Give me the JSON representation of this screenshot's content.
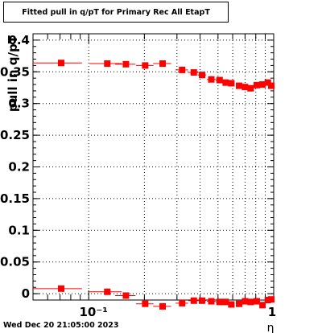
{
  "chart_data": {
    "type": "scatter",
    "title": "Fitted pull in q/pT for Primary Rec All EtapT",
    "xlabel": "η",
    "ylabel": "pull in q/pT",
    "x_scale": "log",
    "xlim": [
      0.05,
      1.0
    ],
    "ylim": [
      -0.01,
      0.41
    ],
    "grid": true,
    "x_tick_labels": [
      "10⁻¹",
      "1"
    ],
    "y_tick_labels": [
      "0",
      "0.05",
      "0.1",
      "0.15",
      "0.2",
      "0.25",
      "0.3",
      "0.35",
      "0.4"
    ],
    "marker_color": "#ff0000",
    "series": [
      {
        "x": [
          0.071,
          0.126,
          0.159,
          0.202,
          0.251,
          0.32,
          0.37,
          0.41,
          0.46,
          0.51,
          0.55,
          0.59,
          0.65,
          0.7,
          0.75,
          0.81,
          0.87,
          0.93,
          0.97
        ],
        "y": [
          0.364,
          0.363,
          0.362,
          0.36,
          0.363,
          0.353,
          0.349,
          0.345,
          0.338,
          0.337,
          0.333,
          0.332,
          0.328,
          0.326,
          0.324,
          0.329,
          0.33,
          0.333,
          0.328
        ],
        "xerr": [
          0.021,
          0.025,
          0.02,
          0.022,
          0.028,
          0.025,
          0.025,
          0.022,
          0.025,
          0.025,
          0.018,
          0.02,
          0.025,
          0.025,
          0.025,
          0.03,
          0.03,
          0.03,
          0.03
        ]
      },
      {
        "x": [
          0.071,
          0.126,
          0.159,
          0.202,
          0.251,
          0.32,
          0.37,
          0.41,
          0.46,
          0.51,
          0.55,
          0.59,
          0.65,
          0.7,
          0.75,
          0.81,
          0.87,
          0.93,
          0.97
        ],
        "y": [
          0.008,
          0.003,
          -0.003,
          -0.016,
          -0.02,
          -0.015,
          -0.011,
          -0.011,
          -0.012,
          -0.013,
          -0.013,
          -0.017,
          -0.016,
          -0.012,
          -0.013,
          -0.012,
          -0.018,
          -0.01,
          -0.009
        ],
        "xerr": [
          0.021,
          0.025,
          0.02,
          0.022,
          0.028,
          0.025,
          0.025,
          0.022,
          0.025,
          0.025,
          0.018,
          0.02,
          0.025,
          0.025,
          0.025,
          0.03,
          0.03,
          0.03,
          0.03
        ]
      }
    ]
  },
  "footer": {
    "timestamp": "Wed Dec 20 21:05:00 2023"
  }
}
